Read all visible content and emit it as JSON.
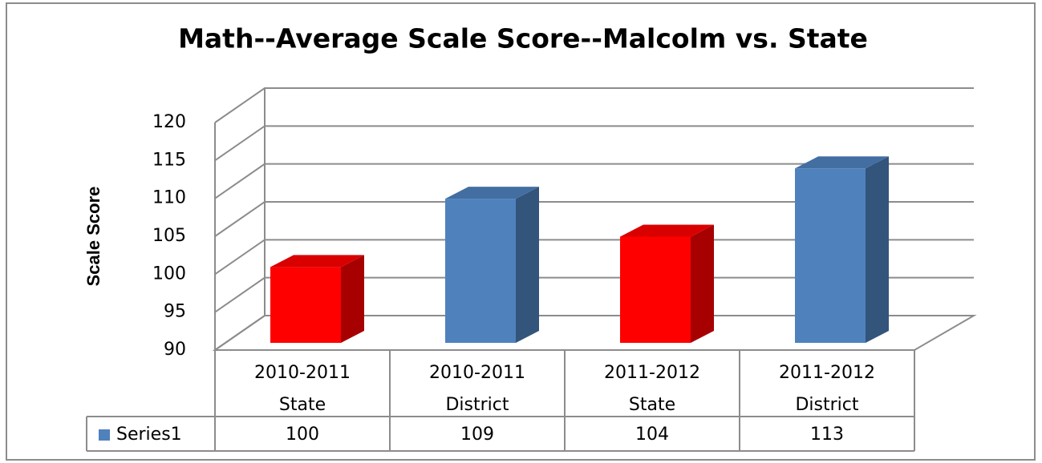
{
  "chart_data": {
    "type": "bar3d",
    "title": "Math--Average Scale Score--Malcolm vs. State",
    "y_label": "Scale Score",
    "categories": [
      [
        "2010-2011",
        "State"
      ],
      [
        "2010-2011",
        "District"
      ],
      [
        "2011-2012",
        "State"
      ],
      [
        "2011-2012",
        "District"
      ]
    ],
    "series": [
      {
        "name": "Series1",
        "color": "#4f81bd",
        "point_colors": [
          "#ff0000",
          "#4f81bd",
          "#ff0000",
          "#4f81bd"
        ],
        "values": [
          100,
          109,
          104,
          113
        ]
      }
    ],
    "ylim": [
      90,
      120
    ],
    "yticks": [
      90,
      95,
      100,
      105,
      110,
      115,
      120
    ],
    "grid": true,
    "data_table": true
  }
}
